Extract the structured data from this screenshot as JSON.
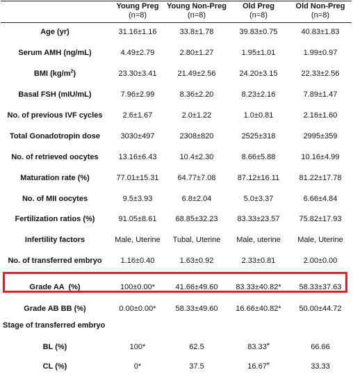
{
  "columns": [
    {
      "title": "Young Preg",
      "n": "(n=8)"
    },
    {
      "title": "Young Non-Preg",
      "n": "(n=8)"
    },
    {
      "title": "Old Preg",
      "n": "(n=8)"
    },
    {
      "title": "Old Non-Preg",
      "n": "(n=8)"
    }
  ],
  "rows": [
    {
      "label": "Age (yr)",
      "values": [
        "31.16±1.16",
        "33.8±1.78",
        "39.83±0.75",
        "40.83±1.83"
      ]
    },
    {
      "label": "Serum AMH (ng/mL)",
      "values": [
        "4.49±2.79",
        "2.80±1.27",
        "1.95±1.01",
        "1.99±0.97"
      ]
    },
    {
      "label_main": "BMI (kg/m",
      "label_sup": "2",
      "label_end": ")",
      "values": [
        "23.30±3.41",
        "21.49±2.56",
        "24.20±3.15",
        "22.33±2.56"
      ]
    },
    {
      "label": "Basal FSH (mIU/mL)",
      "values": [
        "7.96±2.99",
        "8.36±2.20",
        "8.23±2.16",
        "7.89±1.47"
      ]
    },
    {
      "label": "No. of previous IVF cycles",
      "values": [
        "2.6±1.67",
        "2.0±1.22",
        "1.0±0.81",
        "2.16±1.60"
      ]
    },
    {
      "label": "Total Gonadotropin dose",
      "values": [
        "3030±497",
        "2308±820",
        "2525±318",
        "2995±359"
      ]
    },
    {
      "label": "No. of retrieved oocytes",
      "values": [
        "13.16±6.43",
        "10.4±2.30",
        "8.66±5.88",
        "10.16±4.99"
      ]
    },
    {
      "label": "Maturation rate (%)",
      "values": [
        "77.01±15.31",
        "64.77±7.08",
        "87.12±16.11",
        "81.22±17.78"
      ]
    },
    {
      "label": "No. of MII oocytes",
      "values": [
        "9.5±3.93",
        "6.8±2.04",
        "5.0±3.37",
        "6.66±4.84"
      ]
    },
    {
      "label": "Fertilization ratios (%)",
      "values": [
        "91.05±8.61",
        "68.85±32.23",
        "83.33±23.57",
        "75.82±17.93"
      ]
    },
    {
      "label": "Infertility factors",
      "values": [
        "Male, Uterine",
        "Tubal, Uterine",
        "Male, uterine",
        "Male, Uterine"
      ]
    },
    {
      "label": "No. of transferred embryo",
      "values": [
        "1.16±0.40",
        "1.63±0.92",
        "2.33±0.81",
        "2.00±0.00"
      ]
    },
    {
      "label": "Grade AA  (%)",
      "values": [
        "100±0.00*",
        "41.66±49.60",
        "83.33±40.82*",
        "58.33±37.63"
      ]
    },
    {
      "label": "Grade AB BB (%)",
      "values": [
        "0.00±0.00*",
        "58.33±49.60",
        "16.66±40.82*",
        "50.00±44.72"
      ]
    }
  ],
  "section": "Stage of transferred embryo",
  "stage_rows": [
    {
      "label": "BL (%)",
      "v1": "100*",
      "v2": "62.5",
      "v3": "83.33",
      "v3_sup": "#",
      "v4": "66.66"
    },
    {
      "label": "CL (%)",
      "v1": "0*",
      "v2": "37.5",
      "v3": "16.67",
      "v3_sup": "#",
      "v4": "33.33"
    }
  ],
  "highlight_color": "#d3262c"
}
